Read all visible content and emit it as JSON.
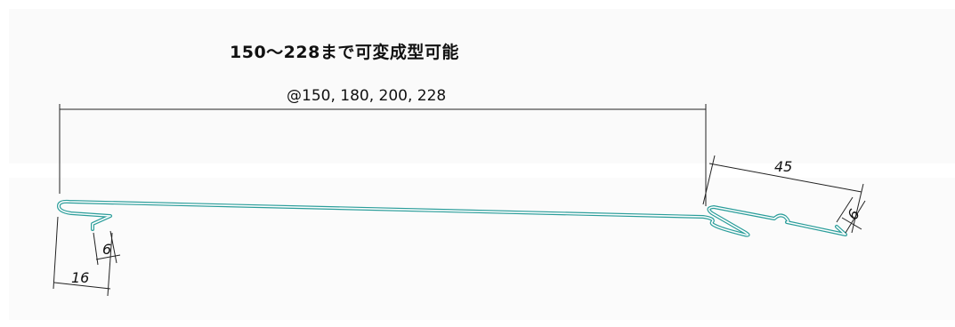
{
  "title": "150～228まで可変成型可能",
  "dimensions": {
    "pitch": "@150, 180, 200, 228",
    "left_width": "16",
    "left_hook": "6",
    "right_length": "45",
    "right_hook": "6"
  },
  "colors": {
    "profile": "#2a9d9a",
    "dimension_line": "#222222"
  }
}
